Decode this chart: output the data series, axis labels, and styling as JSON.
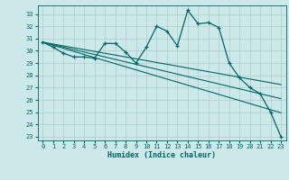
{
  "xlabel": "Humidex (Indice chaleur)",
  "bg_color": "#cde8e8",
  "grid_color": "#aecccc",
  "line_color": "#006666",
  "xlim": [
    -0.5,
    23.5
  ],
  "ylim": [
    22.7,
    33.7
  ],
  "yticks": [
    23,
    24,
    25,
    26,
    27,
    28,
    29,
    30,
    31,
    32,
    33
  ],
  "xticks": [
    0,
    1,
    2,
    3,
    4,
    5,
    6,
    7,
    8,
    9,
    10,
    11,
    12,
    13,
    14,
    15,
    16,
    17,
    18,
    19,
    20,
    21,
    22,
    23
  ],
  "main_line": [
    30.7,
    30.3,
    29.8,
    29.5,
    29.5,
    29.4,
    30.6,
    30.6,
    29.9,
    29.0,
    30.3,
    32.0,
    31.6,
    30.4,
    33.3,
    32.2,
    32.3,
    31.9,
    29.0,
    27.8,
    27.0,
    26.5,
    25.0,
    23.0
  ],
  "trend1": [
    30.7,
    30.55,
    30.4,
    30.25,
    30.1,
    29.95,
    29.8,
    29.65,
    29.5,
    29.35,
    29.2,
    29.05,
    28.9,
    28.75,
    28.6,
    28.45,
    28.3,
    28.15,
    28.0,
    27.85,
    27.7,
    27.55,
    27.4,
    27.25
  ],
  "trend2": [
    30.7,
    30.5,
    30.3,
    30.1,
    29.9,
    29.7,
    29.5,
    29.3,
    29.1,
    28.9,
    28.7,
    28.5,
    28.3,
    28.1,
    27.9,
    27.7,
    27.5,
    27.3,
    27.1,
    26.9,
    26.7,
    26.5,
    26.3,
    26.1
  ],
  "trend3": [
    30.7,
    30.45,
    30.2,
    29.95,
    29.7,
    29.45,
    29.2,
    28.95,
    28.7,
    28.45,
    28.2,
    27.95,
    27.7,
    27.45,
    27.2,
    26.95,
    26.7,
    26.45,
    26.2,
    25.95,
    25.7,
    25.45,
    25.2,
    24.95
  ]
}
